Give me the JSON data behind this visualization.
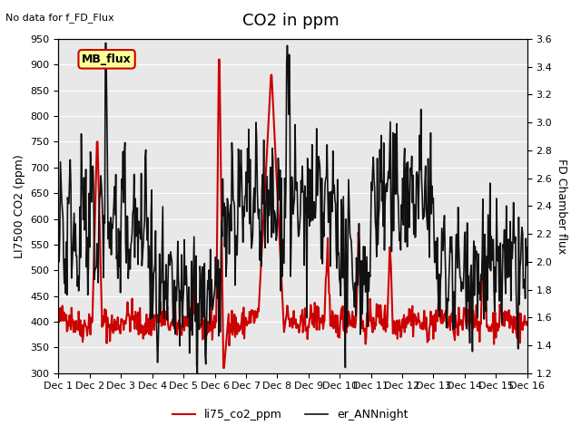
{
  "title": "CO2 in ppm",
  "top_left_text": "No data for f_FD_Flux",
  "annotation_text": "MB_flux",
  "ylabel_left": "LI7500 CO2 (ppm)",
  "ylabel_right": "FD Chamber flux",
  "ylim_left": [
    300,
    950
  ],
  "ylim_right": [
    1.2,
    3.6
  ],
  "yticks_left": [
    300,
    350,
    400,
    450,
    500,
    550,
    600,
    650,
    700,
    750,
    800,
    850,
    900,
    950
  ],
  "yticks_right": [
    1.2,
    1.4,
    1.6,
    1.8,
    2.0,
    2.2,
    2.4,
    2.6,
    2.8,
    3.0,
    3.2,
    3.4,
    3.6
  ],
  "xtick_labels": [
    "Dec 1",
    "Dec 2",
    "Dec 3",
    "Dec 4",
    "Dec 5",
    "Dec 6",
    "Dec 7",
    "Dec 8",
    "Dec 9",
    "Dec 10",
    "Dec 11",
    "Dec 12",
    "Dec 13",
    "Dec 14",
    "Dec 15",
    "Dec 16"
  ],
  "legend_entries": [
    {
      "label": "li75_co2_ppm",
      "color": "#cc0000",
      "lw": 1.5
    },
    {
      "label": "er_ANNnight",
      "color": "#111111",
      "lw": 1.2
    }
  ],
  "background_color": "#f0f0f0",
  "plot_bg_color": "#e8e8e8",
  "annotation_facecolor": "#ffff99",
  "annotation_edgecolor": "#cc0000",
  "title_fontsize": 13,
  "label_fontsize": 9,
  "tick_fontsize": 8
}
